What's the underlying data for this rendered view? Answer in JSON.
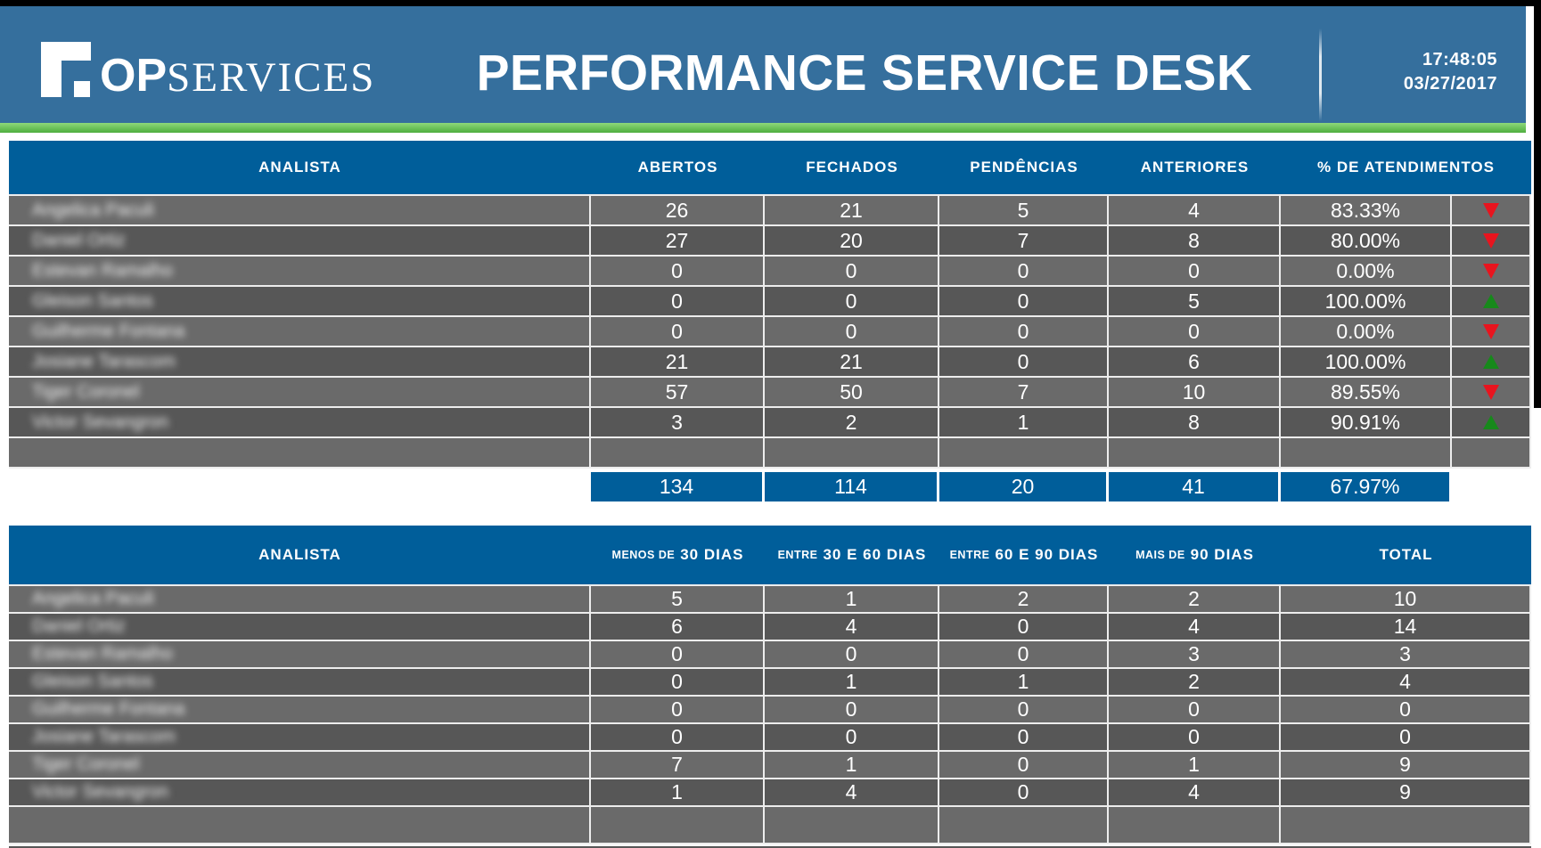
{
  "header": {
    "logo_op": "OP",
    "logo_services": "SERVICES",
    "title": "PERFORMANCE SERVICE DESK",
    "time": "17:48:05",
    "date": "03/27/2017"
  },
  "privacy": {
    "analyst_names_blurred": true
  },
  "table1": {
    "columns": [
      "ANALISTA",
      "ABERTOS",
      "FECHADOS",
      "PENDÊNCIAS",
      "ANTERIORES",
      "% DE ATENDIMENTOS"
    ],
    "rows": [
      {
        "analyst": "Angelica Paculi",
        "abertos": "26",
        "fechados": "21",
        "pendencias": "5",
        "anteriores": "4",
        "pct": "83.33%",
        "trend": "down"
      },
      {
        "analyst": "Daniel Ortiz",
        "abertos": "27",
        "fechados": "20",
        "pendencias": "7",
        "anteriores": "8",
        "pct": "80.00%",
        "trend": "down"
      },
      {
        "analyst": "Estevan Ramalho",
        "abertos": "0",
        "fechados": "0",
        "pendencias": "0",
        "anteriores": "0",
        "pct": "0.00%",
        "trend": "down"
      },
      {
        "analyst": "Gleison Santos",
        "abertos": "0",
        "fechados": "0",
        "pendencias": "0",
        "anteriores": "5",
        "pct": "100.00%",
        "trend": "up"
      },
      {
        "analyst": "Guilherme Fontana",
        "abertos": "0",
        "fechados": "0",
        "pendencias": "0",
        "anteriores": "0",
        "pct": "0.00%",
        "trend": "down"
      },
      {
        "analyst": "Josiane Tarascom",
        "abertos": "21",
        "fechados": "21",
        "pendencias": "0",
        "anteriores": "6",
        "pct": "100.00%",
        "trend": "up"
      },
      {
        "analyst": "Tiger Coronel",
        "abertos": "57",
        "fechados": "50",
        "pendencias": "7",
        "anteriores": "10",
        "pct": "89.55%",
        "trend": "down"
      },
      {
        "analyst": "Victor Sevangron",
        "abertos": "3",
        "fechados": "2",
        "pendencias": "1",
        "anteriores": "8",
        "pct": "90.91%",
        "trend": "up"
      }
    ],
    "totals": {
      "abertos": "134",
      "fechados": "114",
      "pendencias": "20",
      "anteriores": "41",
      "pct": "67.97%"
    }
  },
  "table2": {
    "columns": [
      {
        "small": "",
        "big": "ANALISTA"
      },
      {
        "small": "MENOS DE",
        "big": "30 DIAS"
      },
      {
        "small": "ENTRE",
        "big": "30 E 60 DIAS"
      },
      {
        "small": "ENTRE",
        "big": "60 E 90 DIAS"
      },
      {
        "small": "MAIS DE",
        "big": "90 DIAS"
      },
      {
        "small": "",
        "big": "TOTAL"
      }
    ],
    "rows": [
      {
        "analyst": "Angelica Paculi",
        "values": [
          "5",
          "1",
          "2",
          "2",
          "10"
        ]
      },
      {
        "analyst": "Daniel Ortiz",
        "values": [
          "6",
          "4",
          "0",
          "4",
          "14"
        ]
      },
      {
        "analyst": "Estevan Ramalho",
        "values": [
          "0",
          "0",
          "0",
          "3",
          "3"
        ]
      },
      {
        "analyst": "Gleison Santos",
        "values": [
          "0",
          "1",
          "1",
          "2",
          "4"
        ]
      },
      {
        "analyst": "Guilherme Fontana",
        "values": [
          "0",
          "0",
          "0",
          "0",
          "0"
        ]
      },
      {
        "analyst": "Josiane Tarascom",
        "values": [
          "0",
          "0",
          "0",
          "0",
          "0"
        ]
      },
      {
        "analyst": "Tiger Coronel",
        "values": [
          "7",
          "1",
          "0",
          "1",
          "9"
        ]
      },
      {
        "analyst": "Victor Sevangron",
        "values": [
          "1",
          "4",
          "0",
          "4",
          "9"
        ]
      }
    ]
  },
  "colors": {
    "header_band_blue": "#356F9D",
    "table_header_blue": "#005E9A",
    "green_accent": "#52B146",
    "row_gray_light": "#6A6A6A",
    "row_gray_dark": "#575757",
    "trend_up_green": "#17891B",
    "trend_down_red": "#E8141E"
  }
}
